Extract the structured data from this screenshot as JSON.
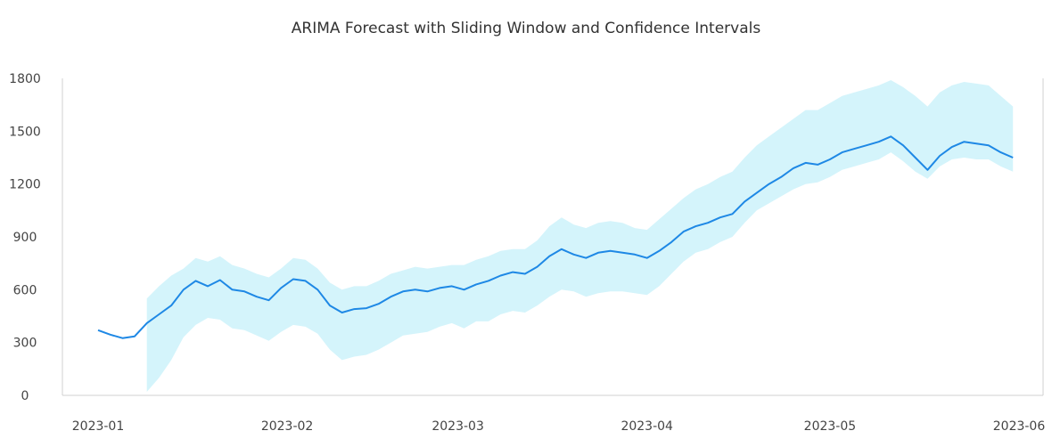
{
  "chart_data": {
    "type": "line",
    "title": "ARIMA Forecast with Sliding Window and Confidence Intervals",
    "xlabel": "",
    "ylabel": "",
    "x_range": [
      "2023-01-01",
      "2023-06-01"
    ],
    "ylim": [
      0,
      1800
    ],
    "yticks": [
      0,
      300,
      600,
      900,
      1200,
      1500,
      1800
    ],
    "xticks": [
      "2023-01",
      "2023-02",
      "2023-03",
      "2023-04",
      "2023-05",
      "2023-06"
    ],
    "grid": false,
    "legend": "none",
    "colors": {
      "forecast": "#1e88e5",
      "confidence": "#d4f4fb",
      "axis": "#d0d0d0"
    },
    "series": [
      {
        "x": [
          "2023-01-01",
          "2023-01-03",
          "2023-01-05",
          "2023-01-07",
          "2023-01-09",
          "2023-01-11",
          "2023-01-13",
          "2023-01-15",
          "2023-01-17",
          "2023-01-19",
          "2023-01-21",
          "2023-01-23",
          "2023-01-25",
          "2023-01-27",
          "2023-01-29",
          "2023-01-31",
          "2023-02-02",
          "2023-02-04",
          "2023-02-06",
          "2023-02-08",
          "2023-02-10",
          "2023-02-12",
          "2023-02-14",
          "2023-02-16",
          "2023-02-18",
          "2023-02-20",
          "2023-02-22",
          "2023-02-24",
          "2023-02-26",
          "2023-02-28",
          "2023-03-02",
          "2023-03-04",
          "2023-03-06",
          "2023-03-08",
          "2023-03-10",
          "2023-03-12",
          "2023-03-14",
          "2023-03-16",
          "2023-03-18",
          "2023-03-20",
          "2023-03-22",
          "2023-03-24",
          "2023-03-26",
          "2023-03-28",
          "2023-03-30",
          "2023-04-01",
          "2023-04-03",
          "2023-04-05",
          "2023-04-07",
          "2023-04-09",
          "2023-04-11",
          "2023-04-13",
          "2023-04-15",
          "2023-04-17",
          "2023-04-19",
          "2023-04-21",
          "2023-04-23",
          "2023-04-25",
          "2023-04-27",
          "2023-04-29",
          "2023-05-01",
          "2023-05-03",
          "2023-05-05",
          "2023-05-07",
          "2023-05-09",
          "2023-05-11",
          "2023-05-13",
          "2023-05-15",
          "2023-05-17",
          "2023-05-19",
          "2023-05-21",
          "2023-05-23",
          "2023-05-25",
          "2023-05-27",
          "2023-05-29",
          "2023-05-31"
        ],
        "values": [
          370,
          345,
          325,
          335,
          410,
          460,
          510,
          600,
          650,
          620,
          655,
          600,
          590,
          560,
          540,
          610,
          660,
          650,
          600,
          510,
          470,
          490,
          495,
          520,
          560,
          590,
          600,
          590,
          610,
          620,
          600,
          630,
          650,
          680,
          700,
          690,
          730,
          790,
          830,
          800,
          780,
          810,
          820,
          810,
          800,
          780,
          820,
          870,
          930,
          960,
          980,
          1010,
          1030,
          1100,
          1150,
          1200,
          1240,
          1290,
          1320,
          1310,
          1340,
          1380,
          1400,
          1420,
          1440,
          1470,
          1420,
          1350,
          1280,
          1360,
          1410,
          1440,
          1430,
          1420,
          1380,
          1350
        ]
      }
    ],
    "confidence_interval": {
      "start": "2023-01-09",
      "x": [
        "2023-01-09",
        "2023-01-11",
        "2023-01-13",
        "2023-01-15",
        "2023-01-17",
        "2023-01-19",
        "2023-01-21",
        "2023-01-23",
        "2023-01-25",
        "2023-01-27",
        "2023-01-29",
        "2023-01-31",
        "2023-02-02",
        "2023-02-04",
        "2023-02-06",
        "2023-02-08",
        "2023-02-10",
        "2023-02-12",
        "2023-02-14",
        "2023-02-16",
        "2023-02-18",
        "2023-02-20",
        "2023-02-22",
        "2023-02-24",
        "2023-02-26",
        "2023-02-28",
        "2023-03-02",
        "2023-03-04",
        "2023-03-06",
        "2023-03-08",
        "2023-03-10",
        "2023-03-12",
        "2023-03-14",
        "2023-03-16",
        "2023-03-18",
        "2023-03-20",
        "2023-03-22",
        "2023-03-24",
        "2023-03-26",
        "2023-03-28",
        "2023-03-30",
        "2023-04-01",
        "2023-04-03",
        "2023-04-05",
        "2023-04-07",
        "2023-04-09",
        "2023-04-11",
        "2023-04-13",
        "2023-04-15",
        "2023-04-17",
        "2023-04-19",
        "2023-04-21",
        "2023-04-23",
        "2023-04-25",
        "2023-04-27",
        "2023-04-29",
        "2023-05-01",
        "2023-05-03",
        "2023-05-05",
        "2023-05-07",
        "2023-05-09",
        "2023-05-11",
        "2023-05-13",
        "2023-05-15",
        "2023-05-17",
        "2023-05-19",
        "2023-05-21",
        "2023-05-23",
        "2023-05-25",
        "2023-05-27",
        "2023-05-29",
        "2023-05-31"
      ],
      "upper": [
        550,
        620,
        680,
        720,
        780,
        760,
        790,
        740,
        720,
        690,
        670,
        720,
        780,
        770,
        720,
        640,
        600,
        620,
        620,
        650,
        690,
        710,
        730,
        720,
        730,
        740,
        740,
        770,
        790,
        820,
        830,
        830,
        880,
        960,
        1010,
        970,
        950,
        980,
        990,
        980,
        950,
        940,
        1000,
        1060,
        1120,
        1170,
        1200,
        1240,
        1270,
        1350,
        1420,
        1470,
        1520,
        1570,
        1620,
        1620,
        1660,
        1700,
        1720,
        1740,
        1760,
        1790,
        1750,
        1700,
        1640,
        1720,
        1760,
        1780,
        1770,
        1760,
        1700,
        1640
      ],
      "lower": [
        20,
        100,
        200,
        330,
        400,
        440,
        430,
        380,
        370,
        340,
        310,
        360,
        400,
        390,
        350,
        260,
        200,
        220,
        230,
        260,
        300,
        340,
        350,
        360,
        390,
        410,
        380,
        420,
        420,
        460,
        480,
        470,
        510,
        560,
        600,
        590,
        560,
        580,
        590,
        590,
        580,
        570,
        620,
        690,
        760,
        810,
        830,
        870,
        900,
        980,
        1050,
        1090,
        1130,
        1170,
        1200,
        1210,
        1240,
        1280,
        1300,
        1320,
        1340,
        1380,
        1330,
        1270,
        1230,
        1300,
        1340,
        1350,
        1340,
        1340,
        1300,
        1270
      ]
    }
  }
}
